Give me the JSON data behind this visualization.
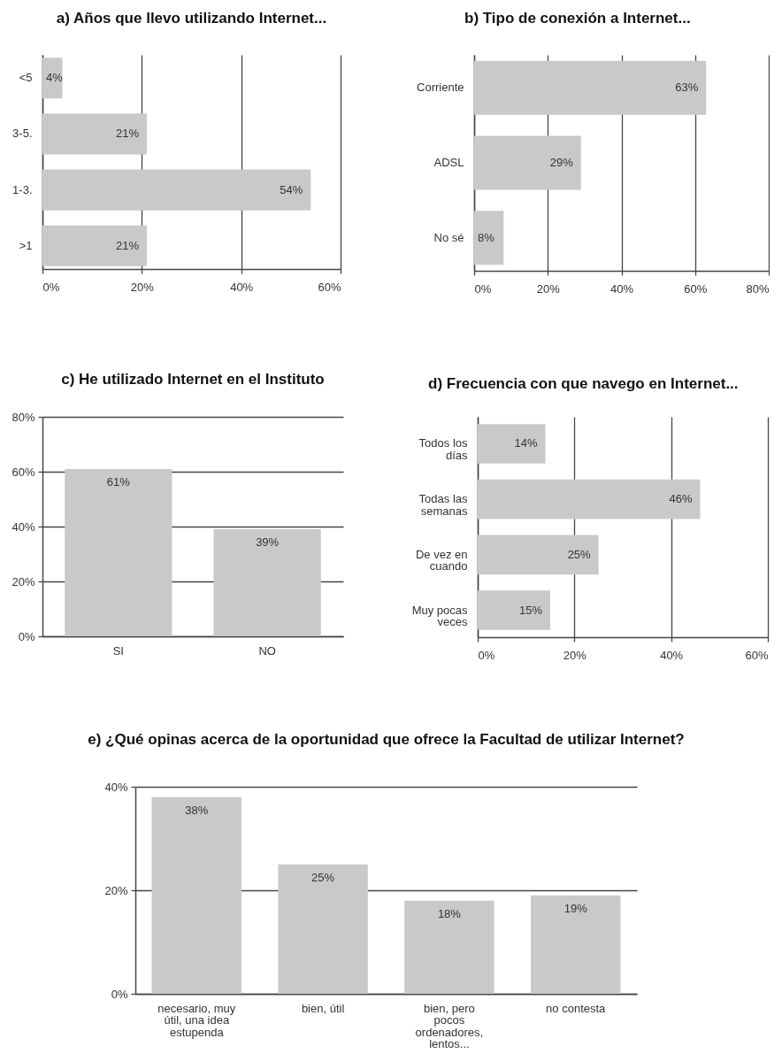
{
  "chart_data": [
    {
      "type": "bar",
      "orientation": "horizontal",
      "title": "a) Años que llevo utilizando Internet...",
      "categories": [
        "<5",
        "3-5.",
        "1-3.",
        ">1"
      ],
      "values": [
        4,
        21,
        54,
        21
      ],
      "value_labels": [
        "4%",
        "21%",
        "54%",
        "21%"
      ],
      "color": "#c8c9cb",
      "xlim": [
        0,
        60
      ],
      "xticks": [
        {
          "value": 0,
          "label": "0%"
        },
        {
          "value": 20,
          "label": "20%"
        },
        {
          "value": 40,
          "label": "40%"
        },
        {
          "value": 60,
          "label": "60%"
        }
      ],
      "grid": "x"
    },
    {
      "type": "bar",
      "orientation": "horizontal",
      "title": "b) Tipo de conexión a Internet...",
      "categories": [
        "Corriente",
        "ADSL",
        "No sé"
      ],
      "values": [
        63,
        29,
        8
      ],
      "value_labels": [
        "63%",
        "29%",
        "8%"
      ],
      "color": "#c8c9cb",
      "xlim": [
        0,
        80
      ],
      "xticks": [
        {
          "value": 0,
          "label": "0%"
        },
        {
          "value": 20,
          "label": "20%"
        },
        {
          "value": 40,
          "label": "40%"
        },
        {
          "value": 60,
          "label": "60%"
        },
        {
          "value": 80,
          "label": "80%"
        }
      ],
      "grid": "x"
    },
    {
      "type": "bar",
      "title": "c) He utilizado Internet en el Instituto",
      "categories": [
        "SI",
        "NO"
      ],
      "values": [
        61,
        39
      ],
      "value_labels": [
        "61%",
        "39%"
      ],
      "color": "#c8c9cb",
      "ylim": [
        0,
        80
      ],
      "yticks": [
        {
          "value": 0,
          "label": "0%"
        },
        {
          "value": 20,
          "label": "20%"
        },
        {
          "value": 40,
          "label": "40%"
        },
        {
          "value": 60,
          "label": "60%"
        },
        {
          "value": 80,
          "label": "80%"
        }
      ],
      "grid": "y"
    },
    {
      "type": "bar",
      "orientation": "horizontal",
      "title": "d) Frecuencia con que navego en Internet...",
      "categories": [
        "Todos los días",
        "Todas las semanas",
        "De vez en cuando",
        "Muy pocas veces"
      ],
      "values": [
        14,
        46,
        25,
        15
      ],
      "value_labels": [
        "14%",
        "46%",
        "25%",
        "15%"
      ],
      "color": "#c8c9cb",
      "xlim": [
        0,
        60
      ],
      "xticks": [
        {
          "value": 0,
          "label": "0%"
        },
        {
          "value": 20,
          "label": "20%"
        },
        {
          "value": 40,
          "label": "40%"
        },
        {
          "value": 60,
          "label": "60%"
        }
      ],
      "grid": "x"
    },
    {
      "type": "bar",
      "title": "e) ¿Qué opinas acerca de la oportunidad que ofrece la Facultad de utilizar Internet?",
      "categories": [
        "necesario, muy útil, una idea estupenda",
        "bien, útil",
        "bien, pero pocos ordenadores, lentos...",
        "no contesta"
      ],
      "values": [
        38,
        25,
        18,
        19
      ],
      "value_labels": [
        "38%",
        "25%",
        "18%",
        "19%"
      ],
      "color": "#c8c9cb",
      "ylim": [
        0,
        40
      ],
      "yticks": [
        {
          "value": 0,
          "label": "0%"
        },
        {
          "value": 20,
          "label": "20%"
        },
        {
          "value": 40,
          "label": "40%"
        }
      ],
      "grid": "y"
    }
  ]
}
